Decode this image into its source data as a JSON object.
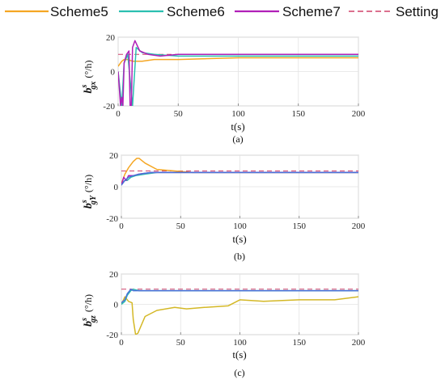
{
  "legend": [
    {
      "name": "Scheme5",
      "color": "#F5A623",
      "dash": false
    },
    {
      "name": "Scheme6",
      "color": "#2BBFB0",
      "dash": false
    },
    {
      "name": "Scheme7",
      "color": "#B020B8",
      "dash": false
    },
    {
      "name": "Setting",
      "color": "#D0406A",
      "dash": true
    }
  ],
  "chart_data": [
    {
      "type": "line",
      "caption": "(a)",
      "xlabel": "t(s)",
      "ylabel": "b",
      "ylabel_sup": "s",
      "ylabel_sub": "gx",
      "ylabel_unit": "(°/h)",
      "xlim": [
        0,
        200
      ],
      "ylim": [
        -20,
        20
      ],
      "xticks": [
        0,
        50,
        100,
        150,
        200
      ],
      "yticks": [
        -20,
        0,
        20
      ],
      "grid": true,
      "setting": 10,
      "series": [
        {
          "name": "Scheme5",
          "color": "#F5A623",
          "x": [
            0,
            3,
            5,
            8,
            12,
            20,
            30,
            50,
            100,
            150,
            200
          ],
          "y": [
            3,
            6,
            7,
            7,
            6,
            6,
            7,
            7,
            8,
            8,
            8
          ]
        },
        {
          "name": "Scheme6",
          "color": "#2BBFB0",
          "x": [
            0,
            3,
            5,
            8,
            12,
            15,
            20,
            30,
            50,
            100,
            150,
            200
          ],
          "y": [
            0,
            -20,
            5,
            10,
            -20,
            14,
            11,
            10,
            9,
            9,
            9,
            9
          ]
        },
        {
          "name": "Scheme7",
          "color": "#B020B8",
          "x": [
            0,
            2,
            3,
            4,
            5,
            7,
            9,
            10,
            11,
            12,
            14,
            18,
            25,
            35,
            50,
            100,
            150,
            200
          ],
          "y": [
            0,
            -20,
            -15,
            -20,
            5,
            10,
            12,
            -20,
            -20,
            14,
            18,
            12,
            10,
            9,
            10,
            10,
            10,
            10
          ]
        }
      ]
    },
    {
      "type": "line",
      "caption": "(b)",
      "xlabel": "t(s)",
      "ylabel": "b",
      "ylabel_sup": "s",
      "ylabel_sub": "gY",
      "ylabel_unit": "(°/h)",
      "xlim": [
        0,
        200
      ],
      "ylim": [
        -20,
        20
      ],
      "xticks": [
        0,
        50,
        100,
        150,
        200
      ],
      "yticks": [
        -20,
        0,
        20
      ],
      "grid": true,
      "setting": 10,
      "series": [
        {
          "name": "Scheme5",
          "color": "#F5A623",
          "x": [
            0,
            3,
            6,
            10,
            13,
            15,
            20,
            30,
            45,
            60,
            100,
            200
          ],
          "y": [
            2,
            8,
            12,
            16,
            18,
            18,
            15,
            11,
            10,
            9,
            9,
            9
          ]
        },
        {
          "name": "Scheme6",
          "color": "#2BBFB0",
          "x": [
            0,
            3,
            5,
            8,
            12,
            20,
            30,
            50,
            100,
            200
          ],
          "y": [
            2,
            4,
            4,
            6,
            7,
            8,
            9,
            9,
            9,
            9
          ]
        },
        {
          "name": "Scheme7",
          "color": "#B020B8",
          "x": [
            0,
            2,
            4,
            6,
            10,
            15,
            25,
            40,
            60,
            100,
            200
          ],
          "y": [
            1,
            6,
            4,
            7,
            7,
            8,
            9,
            9,
            9,
            9,
            9
          ]
        },
        {
          "name": "",
          "color": "#4A6FD8",
          "x": [
            0,
            3,
            6,
            10,
            15,
            25,
            40,
            60,
            100,
            200
          ],
          "y": [
            1,
            4,
            6,
            7,
            8,
            9,
            9,
            9,
            9,
            9
          ]
        }
      ]
    },
    {
      "type": "line",
      "caption": "(c)",
      "xlabel": "t(s)",
      "ylabel": "b",
      "ylabel_sup": "s",
      "ylabel_sub": "gz",
      "ylabel_unit": "(°/h)",
      "xlim": [
        0,
        200
      ],
      "ylim": [
        -20,
        20
      ],
      "xticks": [
        0,
        50,
        100,
        150,
        200
      ],
      "yticks": [
        -20,
        0,
        20
      ],
      "grid": true,
      "setting": 10,
      "series": [
        {
          "name": "Scheme5",
          "color": "#D4B826",
          "x": [
            0,
            3,
            6,
            9,
            10,
            12,
            14,
            20,
            30,
            45,
            55,
            70,
            90,
            100,
            120,
            150,
            180,
            200
          ],
          "y": [
            0,
            5,
            2,
            1,
            -10,
            -20,
            -19,
            -8,
            -4,
            -2,
            -3,
            -2,
            -1,
            3,
            2,
            3,
            3,
            5
          ]
        },
        {
          "name": "Scheme6",
          "color": "#2BBFB0",
          "x": [
            0,
            3,
            5,
            8,
            10,
            15,
            30,
            60,
            100,
            150,
            200
          ],
          "y": [
            0,
            2,
            6,
            9,
            10,
            9,
            9,
            9,
            9,
            9,
            9
          ]
        },
        {
          "name": "",
          "color": "#4A6FD8",
          "x": [
            0,
            3,
            5,
            8,
            10,
            15,
            30,
            60,
            100,
            150,
            200
          ],
          "y": [
            1,
            3,
            7,
            10,
            9,
            9,
            9,
            9,
            9,
            9,
            9
          ]
        }
      ]
    }
  ]
}
